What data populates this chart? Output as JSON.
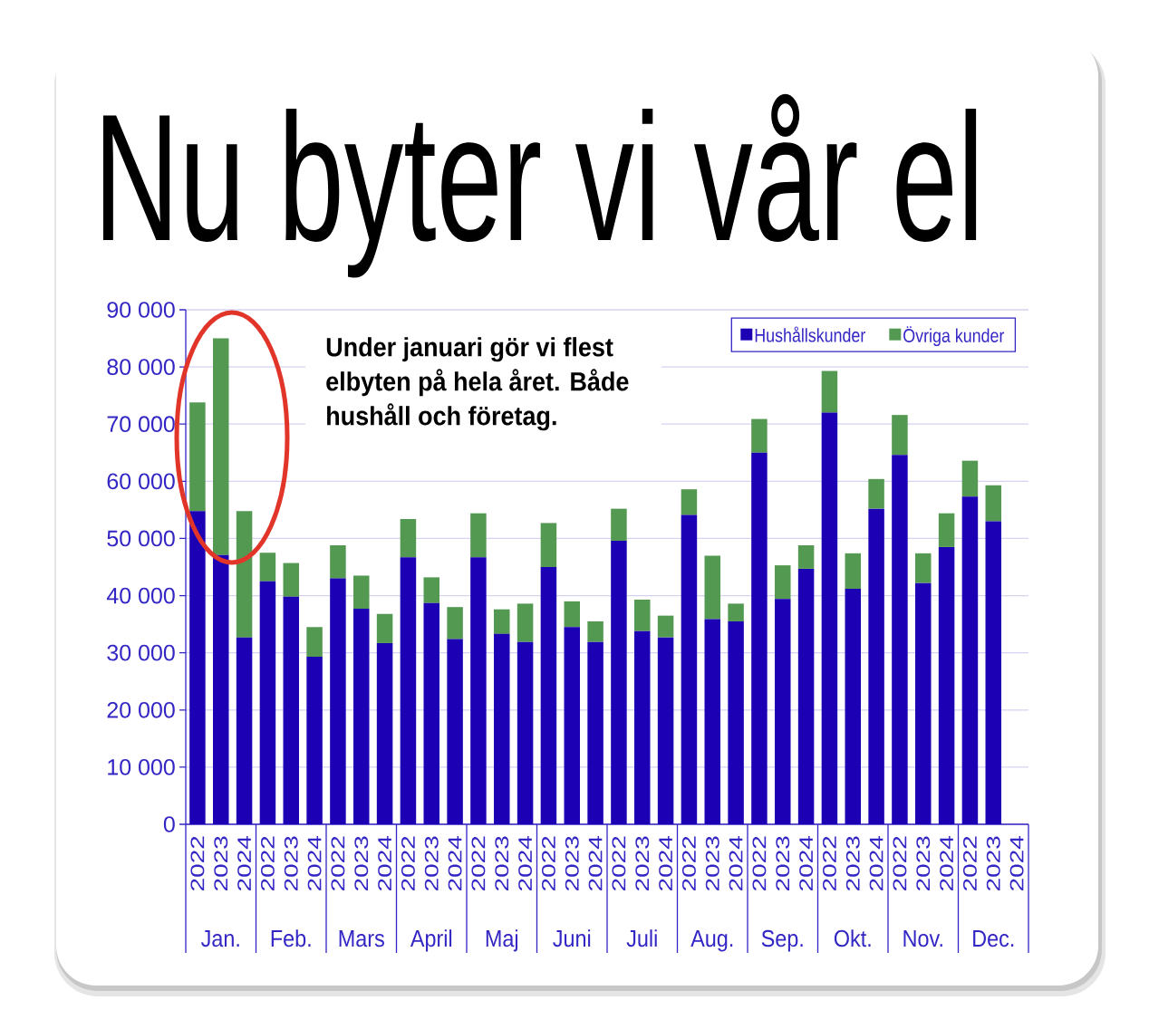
{
  "chart_data": {
    "type": "bar",
    "title": "Nu byter vi vår el",
    "stacked": true,
    "categories": [
      "2022",
      "2023",
      "2024",
      "2022",
      "2023",
      "2024",
      "2022",
      "2023",
      "2024",
      "2022",
      "2023",
      "2024",
      "2022",
      "2023",
      "2024",
      "2022",
      "2023",
      "2024",
      "2022",
      "2023",
      "2024",
      "2022",
      "2023",
      "2024",
      "2022",
      "2023",
      "2024",
      "2022",
      "2023",
      "2024",
      "2022",
      "2023",
      "2024",
      "2022",
      "2023",
      "2024"
    ],
    "series": [
      {
        "name": "Hushållskunder",
        "color": "#1c00b4",
        "values": [
          54800,
          47100,
          32700,
          42500,
          39800,
          29300,
          43000,
          37700,
          31700,
          46700,
          38700,
          32400,
          46700,
          33300,
          31900,
          45000,
          34500,
          31900,
          49600,
          33800,
          32700,
          54100,
          35900,
          35500,
          65000,
          39400,
          44700,
          72000,
          41200,
          55200,
          64600,
          42200,
          48500,
          57300,
          53000,
          null
        ]
      },
      {
        "name": "Övriga kunder",
        "color": "#549952",
        "values": [
          19000,
          37900,
          22100,
          5000,
          5900,
          5200,
          5800,
          5800,
          5100,
          6700,
          4500,
          5600,
          7700,
          4300,
          6700,
          7700,
          4500,
          3600,
          5600,
          5500,
          3800,
          4500,
          11100,
          3100,
          5900,
          5900,
          4100,
          7300,
          6200,
          5200,
          7000,
          5200,
          5900,
          6300,
          6300,
          null
        ]
      }
    ],
    "ylim": [
      0,
      90000
    ],
    "yticks": [
      0,
      {
        "value": 10000,
        "label": "10 000"
      },
      {
        "value": 20000,
        "label": "20 000"
      },
      {
        "value": 30000,
        "label": "30 000"
      },
      {
        "value": 40000,
        "label": "40 000"
      },
      {
        "value": 50000,
        "label": "50 000"
      },
      {
        "value": 60000,
        "label": "60 000"
      },
      {
        "value": 70000,
        "label": "70 000"
      },
      {
        "value": 80000,
        "label": "80 000"
      },
      {
        "value": 90000,
        "label": "90 000"
      }
    ],
    "grid": "y",
    "legend": "top right",
    "annotations": [
      "Under januari gör vi flest elbyten på hela året. Både hushåll och företag.",
      "Jan.",
      "Feb.",
      "Mars",
      "April",
      "Maj",
      "Juni",
      "Juli",
      "Aug.",
      "Sep.",
      "Okt.",
      "Nov.",
      "Dec."
    ]
  }
}
